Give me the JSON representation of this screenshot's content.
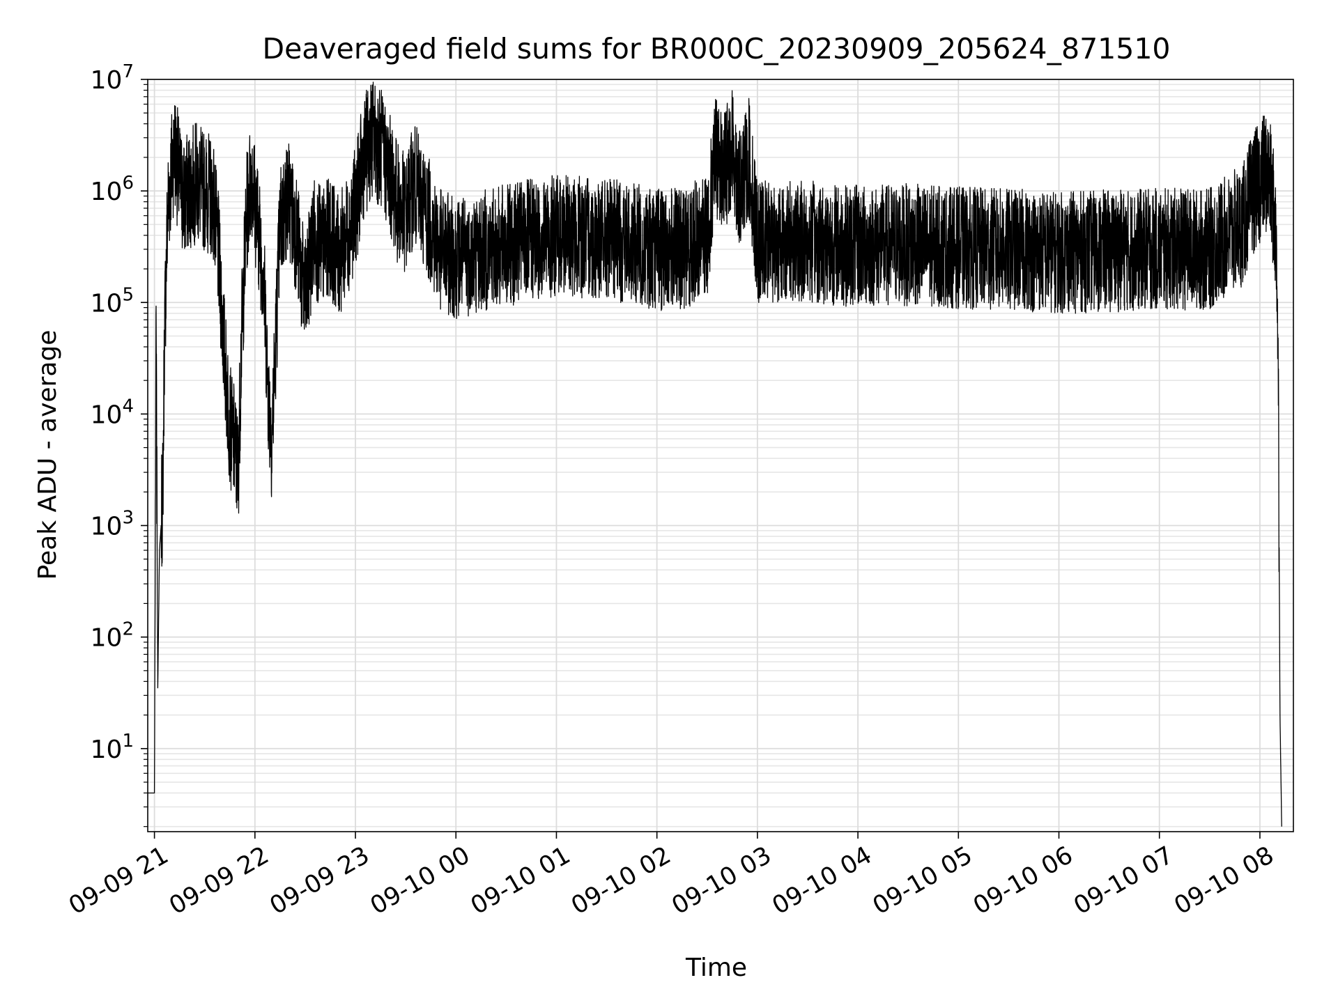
{
  "chart_data": {
    "type": "line",
    "title": "Deaveraged field sums for BR000C_20230909_205624_871510",
    "xlabel": "Time",
    "ylabel": "Peak ADU - average",
    "y_scale": "log",
    "ylim": [
      1.8,
      10000000
    ],
    "xlim": [
      "2023-09-09 20:56",
      "2023-09-10 08:20"
    ],
    "grid": true,
    "line_color": "#000000",
    "x_ticks": [
      {
        "at": "2023-09-09 21:00",
        "label": "09-09 21"
      },
      {
        "at": "2023-09-09 22:00",
        "label": "09-09 22"
      },
      {
        "at": "2023-09-09 23:00",
        "label": "09-09 23"
      },
      {
        "at": "2023-09-10 00:00",
        "label": "09-10 00"
      },
      {
        "at": "2023-09-10 01:00",
        "label": "09-10 01"
      },
      {
        "at": "2023-09-10 02:00",
        "label": "09-10 02"
      },
      {
        "at": "2023-09-10 03:00",
        "label": "09-10 03"
      },
      {
        "at": "2023-09-10 04:00",
        "label": "09-10 04"
      },
      {
        "at": "2023-09-10 05:00",
        "label": "09-10 05"
      },
      {
        "at": "2023-09-10 06:00",
        "label": "09-10 06"
      },
      {
        "at": "2023-09-10 07:00",
        "label": "09-10 07"
      },
      {
        "at": "2023-09-10 08:00",
        "label": "09-10 08"
      }
    ],
    "y_ticks": [
      {
        "value": 10,
        "base": "10",
        "exp": "1"
      },
      {
        "value": 100,
        "base": "10",
        "exp": "2"
      },
      {
        "value": 1000,
        "base": "10",
        "exp": "3"
      },
      {
        "value": 10000,
        "base": "10",
        "exp": "4"
      },
      {
        "value": 100000,
        "base": "10",
        "exp": "5"
      },
      {
        "value": 1000000,
        "base": "10",
        "exp": "6"
      },
      {
        "value": 10000000,
        "base": "10",
        "exp": "7"
      }
    ],
    "series": [
      {
        "x": [
          "2023-09-09 20:56",
          "2023-09-09 20:58",
          "2023-09-09 21:00",
          "2023-09-09 21:01",
          "2023-09-09 21:02",
          "2023-09-09 21:03",
          "2023-09-09 21:04",
          "2023-09-09 21:05",
          "2023-09-09 21:06",
          "2023-09-09 21:07",
          "2023-09-09 21:08",
          "2023-09-09 21:10",
          "2023-09-09 21:12",
          "2023-09-09 21:15",
          "2023-09-09 21:18",
          "2023-09-09 21:20",
          "2023-09-09 21:25",
          "2023-09-09 21:30",
          "2023-09-09 21:35",
          "2023-09-09 21:38",
          "2023-09-09 21:40",
          "2023-09-09 21:42",
          "2023-09-09 21:45",
          "2023-09-09 21:48",
          "2023-09-09 21:50",
          "2023-09-09 21:52",
          "2023-09-09 21:55",
          "2023-09-09 21:58",
          "2023-09-09 22:00",
          "2023-09-09 22:05",
          "2023-09-09 22:08",
          "2023-09-09 22:10",
          "2023-09-09 22:12",
          "2023-09-09 22:15",
          "2023-09-09 22:20",
          "2023-09-09 22:25",
          "2023-09-09 22:30",
          "2023-09-09 22:35",
          "2023-09-09 22:40",
          "2023-09-09 22:45",
          "2023-09-09 22:50",
          "2023-09-09 22:55",
          "2023-09-09 23:00",
          "2023-09-09 23:05",
          "2023-09-09 23:10",
          "2023-09-09 23:15",
          "2023-09-09 23:20",
          "2023-09-09 23:25",
          "2023-09-09 23:30",
          "2023-09-09 23:35",
          "2023-09-09 23:40",
          "2023-09-09 23:45",
          "2023-09-09 23:50",
          "2023-09-10 00:00",
          "2023-09-10 00:20",
          "2023-09-10 00:40",
          "2023-09-10 01:00",
          "2023-09-10 01:20",
          "2023-09-10 01:40",
          "2023-09-10 02:00",
          "2023-09-10 02:15",
          "2023-09-10 02:30",
          "2023-09-10 02:35",
          "2023-09-10 02:40",
          "2023-09-10 02:45",
          "2023-09-10 02:50",
          "2023-09-10 02:55",
          "2023-09-10 03:00",
          "2023-09-10 03:30",
          "2023-09-10 04:00",
          "2023-09-10 04:30",
          "2023-09-10 05:00",
          "2023-09-10 05:30",
          "2023-09-10 06:00",
          "2023-09-10 06:30",
          "2023-09-10 07:00",
          "2023-09-10 07:30",
          "2023-09-10 07:50",
          "2023-09-10 07:55",
          "2023-09-10 08:00",
          "2023-09-10 08:03",
          "2023-09-10 08:06",
          "2023-09-10 08:08",
          "2023-09-10 08:10",
          "2023-09-10 08:11",
          "2023-09-10 08:12",
          "2023-09-10 08:13"
        ],
        "y": [
          4,
          4,
          4,
          60000,
          35,
          600,
          1000,
          2000,
          50000,
          200000,
          700000,
          1500000,
          2500000,
          1200000,
          800000,
          1000000,
          1200000,
          1000000,
          900000,
          300000,
          100000,
          30000,
          8000,
          5000,
          3000,
          50000,
          600000,
          1500000,
          800000,
          200000,
          15000,
          6000,
          30000,
          500000,
          900000,
          400000,
          100000,
          400000,
          300000,
          400000,
          250000,
          400000,
          700000,
          2000000,
          3000000,
          2500000,
          1500000,
          800000,
          600000,
          1200000,
          800000,
          500000,
          300000,
          250000,
          300000,
          350000,
          400000,
          380000,
          350000,
          300000,
          300000,
          400000,
          2000000,
          1500000,
          2500000,
          900000,
          2000000,
          350000,
          350000,
          320000,
          330000,
          310000,
          300000,
          280000,
          290000,
          300000,
          300000,
          500000,
          900000,
          1200000,
          1500000,
          1200000,
          700000,
          300000,
          20000,
          20,
          2
        ]
      }
    ]
  }
}
